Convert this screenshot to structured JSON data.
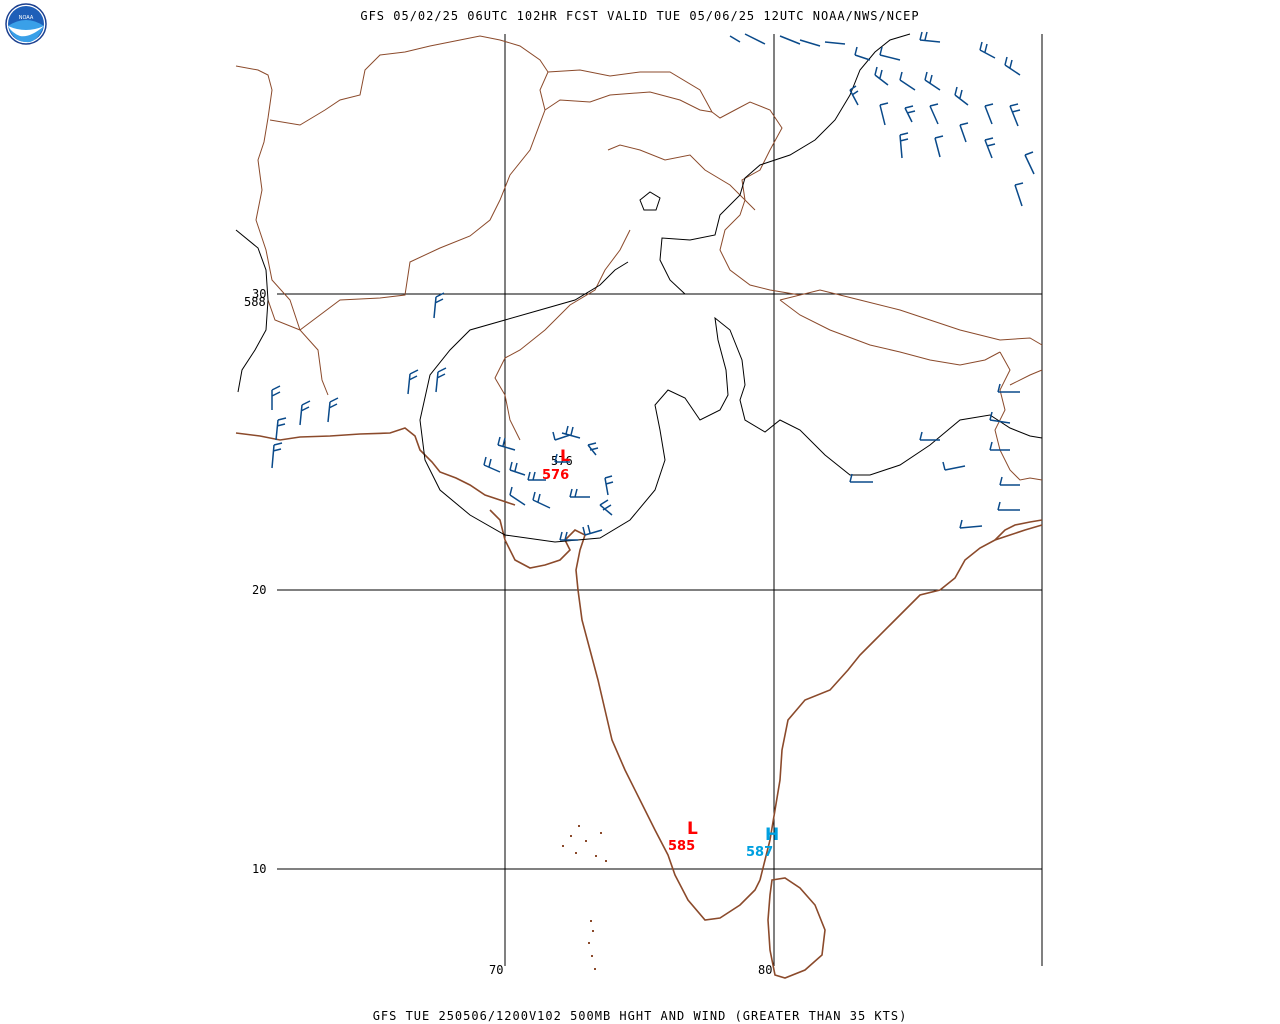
{
  "title": "GFS 05/02/25 06UTC 102HR FCST VALID TUE 05/06/25 12UTC NOAA/NWS/NCEP",
  "caption": "GFS TUE 250506/1200V102 500MB HGHT AND WIND (GREATER THAN 35 KTS)",
  "logo": {
    "icon": "noaa-logo-icon",
    "text": "NOAA"
  },
  "grid": {
    "lat_labels": [
      "30",
      "20",
      "10"
    ],
    "lon_labels": [
      "70",
      "80"
    ]
  },
  "contour_labels": [
    "588",
    "576"
  ],
  "pressure_centers": [
    {
      "type": "L",
      "value": "576",
      "color": "#ff0000"
    },
    {
      "type": "L",
      "value": "585",
      "color": "#ff0000"
    },
    {
      "type": "H",
      "value": "587",
      "color": "#00a0e0"
    }
  ],
  "colors": {
    "borders": "#8b4a2b",
    "contours": "#000000",
    "wind_barbs": "#0a4a8a",
    "low": "#ff0000",
    "high": "#00a0e0",
    "grid": "#000000"
  }
}
